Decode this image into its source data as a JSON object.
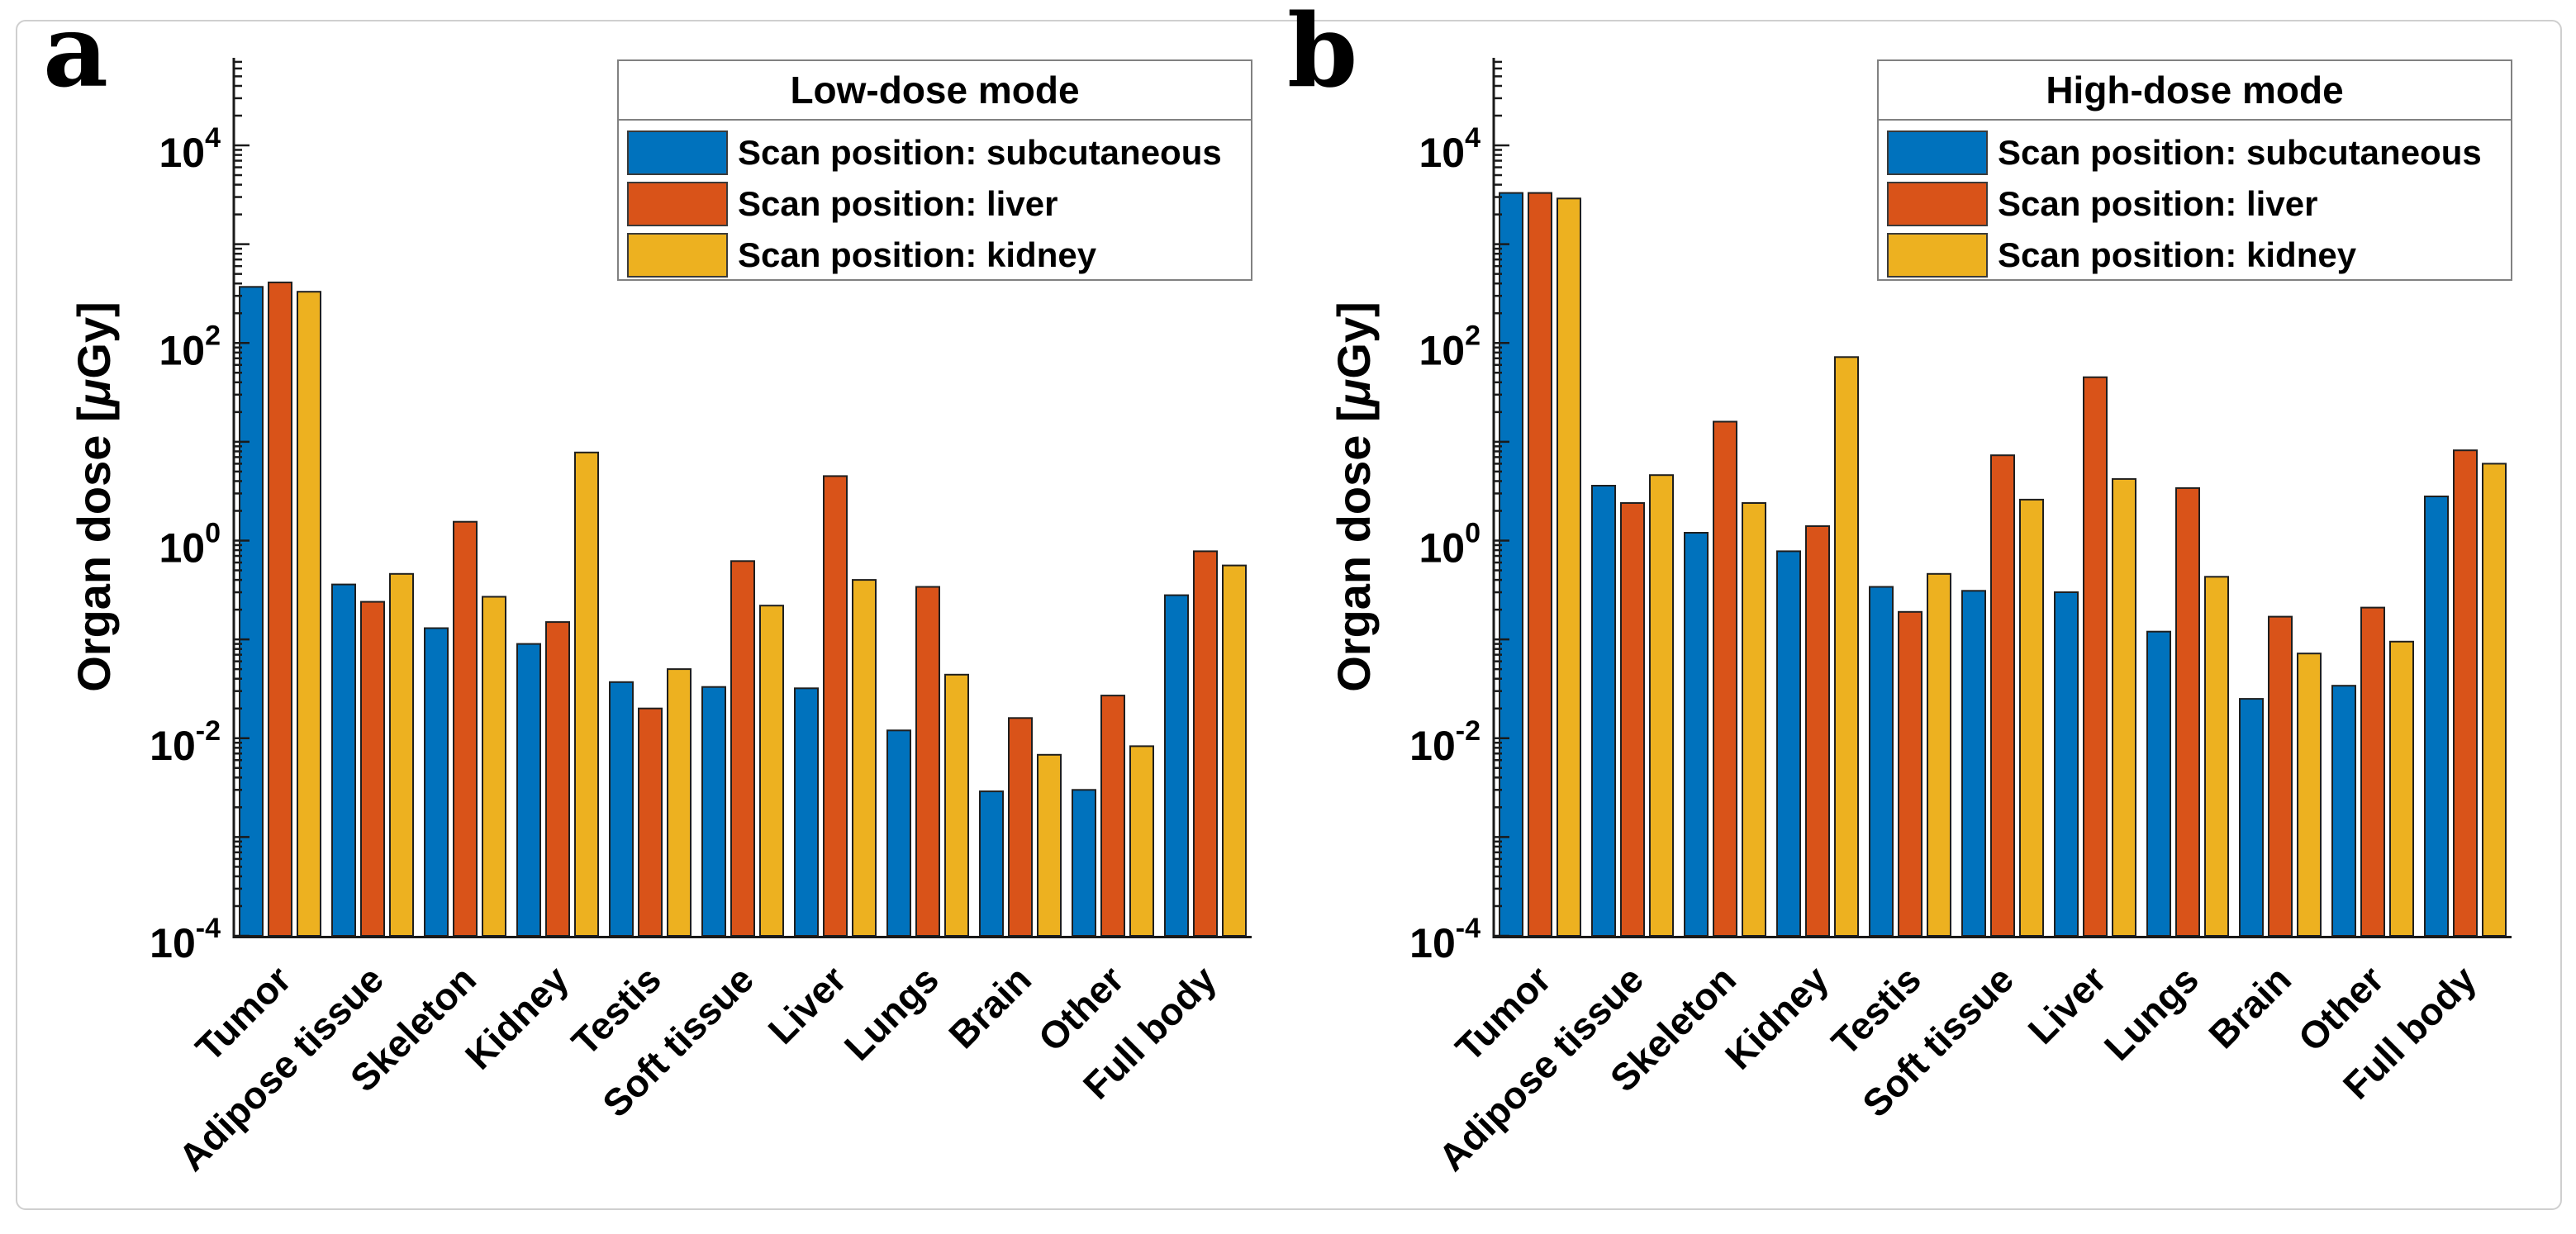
{
  "panel_letters": [
    "a",
    "b"
  ],
  "y_axis": {
    "label": "Organ dose [μGy]",
    "tick_exponents": [
      4,
      2,
      0,
      -2,
      -4
    ]
  },
  "series_labels": [
    "Scan position: subcutaneous",
    "Scan position: liver",
    "Scan position: kidney"
  ],
  "colors": {
    "subcutaneous": "#0072BD",
    "liver": "#D95319",
    "kidney": "#EDB120",
    "bar_edge": "#1F1F1F",
    "axis": "#1A1A1A",
    "legend_border": "#818181"
  },
  "chart_data": [
    {
      "type": "bar",
      "title": "Low-dose mode",
      "yscale": "log",
      "ylabel": "Organ dose [μGy]",
      "ylim": [
        0.0001,
        100000
      ],
      "legend_position": "upper right",
      "grid": false,
      "categories": [
        "Tumor",
        "Adipose tissue",
        "Skeleton",
        "Kidney",
        "Testis",
        "Soft tissue",
        "Liver",
        "Lungs",
        "Brain",
        "Other",
        "Full body"
      ],
      "series": [
        {
          "key": "subcutaneous",
          "name": "Scan position: subcutaneous",
          "values": [
            370,
            0.36,
            0.13,
            0.09,
            0.037,
            0.033,
            0.032,
            0.012,
            0.0029,
            0.003,
            0.28
          ]
        },
        {
          "key": "liver",
          "name": "Scan position: liver",
          "values": [
            410,
            0.24,
            1.55,
            0.15,
            0.02,
            0.62,
            4.5,
            0.34,
            0.016,
            0.027,
            0.78
          ]
        },
        {
          "key": "kidney",
          "name": "Scan position: kidney",
          "values": [
            330,
            0.46,
            0.27,
            7.8,
            0.05,
            0.22,
            0.4,
            0.044,
            0.0068,
            0.0083,
            0.56
          ]
        }
      ]
    },
    {
      "type": "bar",
      "title": "High-dose mode",
      "yscale": "log",
      "ylabel": "Organ dose [μGy]",
      "ylim": [
        0.0001,
        100000
      ],
      "legend_position": "upper right",
      "grid": false,
      "categories": [
        "Tumor",
        "Adipose tissue",
        "Skeleton",
        "Kidney",
        "Testis",
        "Soft tissue",
        "Liver",
        "Lungs",
        "Brain",
        "Other",
        "Full body"
      ],
      "series": [
        {
          "key": "subcutaneous",
          "name": "Scan position: subcutaneous",
          "values": [
            3300,
            3.6,
            1.2,
            0.78,
            0.34,
            0.31,
            0.3,
            0.12,
            0.025,
            0.034,
            2.8
          ]
        },
        {
          "key": "liver",
          "name": "Scan position: liver",
          "values": [
            3300,
            2.4,
            16,
            1.4,
            0.19,
            7.3,
            45,
            3.4,
            0.17,
            0.21,
            8.2
          ]
        },
        {
          "key": "kidney",
          "name": "Scan position: kidney",
          "values": [
            2900,
            4.6,
            2.4,
            72,
            0.46,
            2.6,
            4.2,
            0.43,
            0.072,
            0.095,
            6.0
          ]
        }
      ]
    }
  ]
}
